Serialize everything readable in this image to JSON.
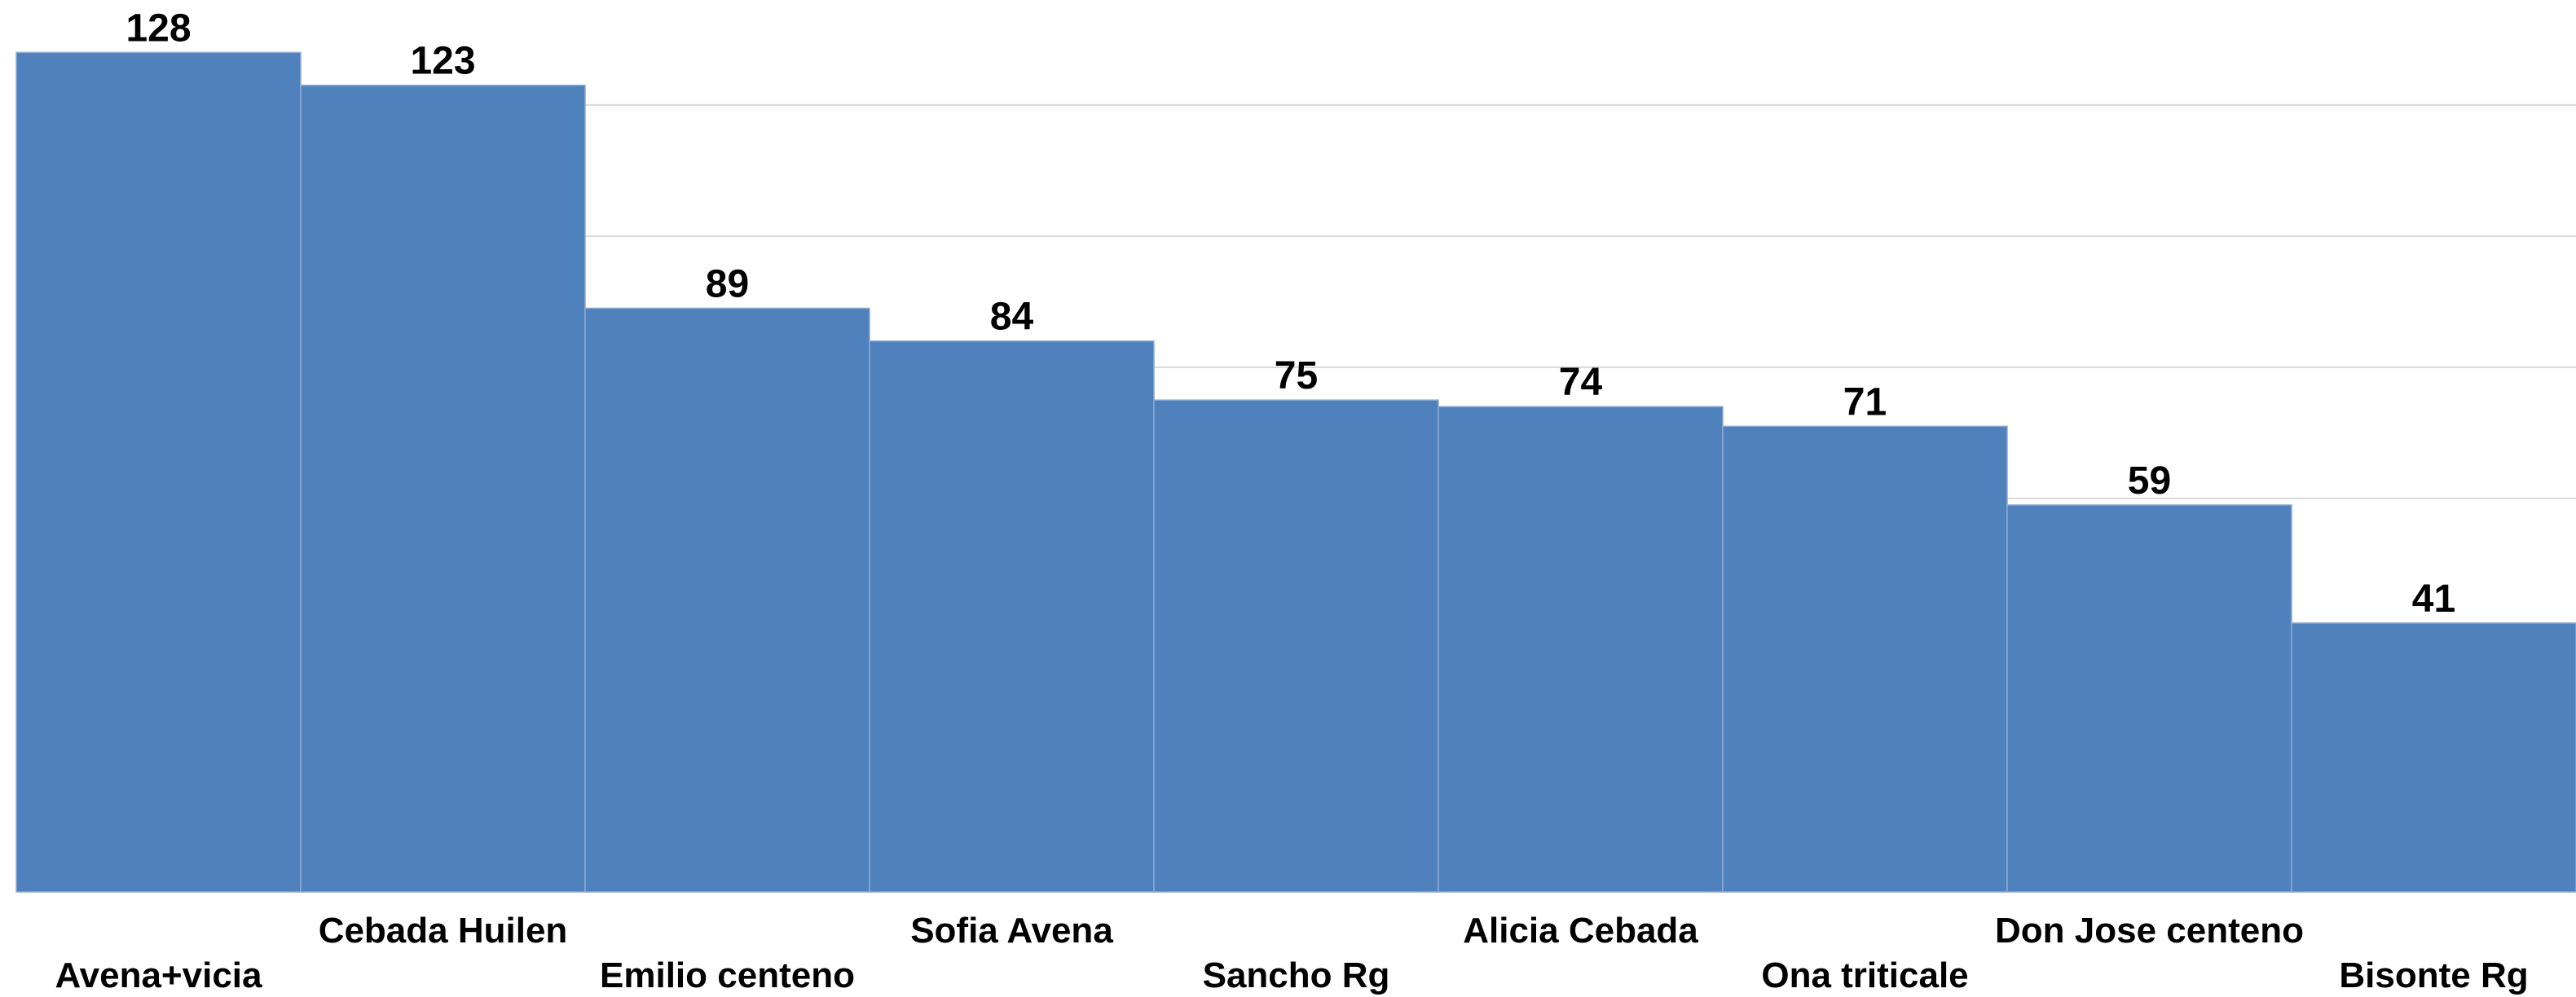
{
  "chart_data": {
    "type": "bar",
    "categories": [
      "Avena+vicia",
      "Cebada Huilen",
      "Emilio centeno",
      "Sofia Avena",
      "Sancho Rg",
      "Alicia Cebada",
      "Ona triticale",
      "Don Jose centeno",
      "Bisonte Rg"
    ],
    "values": [
      128,
      123,
      89,
      84,
      75,
      74,
      71,
      59,
      41
    ],
    "color": "#4f81bd",
    "ylim": [
      0,
      136
    ],
    "yticks": [
      20,
      40,
      60,
      80,
      100,
      120
    ],
    "grid": true
  }
}
